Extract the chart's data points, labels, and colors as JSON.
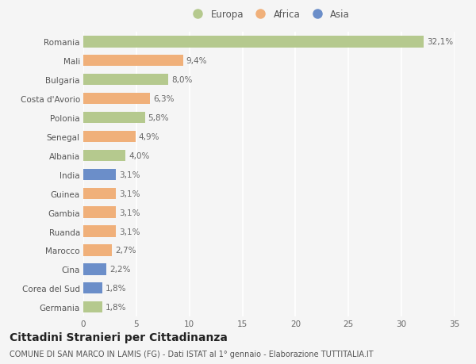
{
  "countries": [
    "Romania",
    "Mali",
    "Bulgaria",
    "Costa d'Avorio",
    "Polonia",
    "Senegal",
    "Albania",
    "India",
    "Guinea",
    "Gambia",
    "Ruanda",
    "Marocco",
    "Cina",
    "Corea del Sud",
    "Germania"
  ],
  "values": [
    32.1,
    9.4,
    8.0,
    6.3,
    5.8,
    4.9,
    4.0,
    3.1,
    3.1,
    3.1,
    3.1,
    2.7,
    2.2,
    1.8,
    1.8
  ],
  "labels": [
    "32,1%",
    "9,4%",
    "8,0%",
    "6,3%",
    "5,8%",
    "4,9%",
    "4,0%",
    "3,1%",
    "3,1%",
    "3,1%",
    "3,1%",
    "2,7%",
    "2,2%",
    "1,8%",
    "1,8%"
  ],
  "continents": [
    "Europa",
    "Africa",
    "Europa",
    "Africa",
    "Europa",
    "Africa",
    "Europa",
    "Asia",
    "Africa",
    "Africa",
    "Africa",
    "Africa",
    "Asia",
    "Asia",
    "Europa"
  ],
  "colors": {
    "Europa": "#b5c98e",
    "Africa": "#f0b07a",
    "Asia": "#6b8ec9"
  },
  "legend_order": [
    "Europa",
    "Africa",
    "Asia"
  ],
  "xlim": [
    0,
    35
  ],
  "xticks": [
    0,
    5,
    10,
    15,
    20,
    25,
    30,
    35
  ],
  "title": "Cittadini Stranieri per Cittadinanza",
  "subtitle": "COMUNE DI SAN MARCO IN LAMIS (FG) - Dati ISTAT al 1° gennaio - Elaborazione TUTTITALIA.IT",
  "bg_color": "#f5f5f5",
  "grid_color": "#ffffff",
  "bar_height": 0.6,
  "label_fontsize": 7.5,
  "tick_fontsize": 7.5,
  "title_fontsize": 10,
  "subtitle_fontsize": 7
}
